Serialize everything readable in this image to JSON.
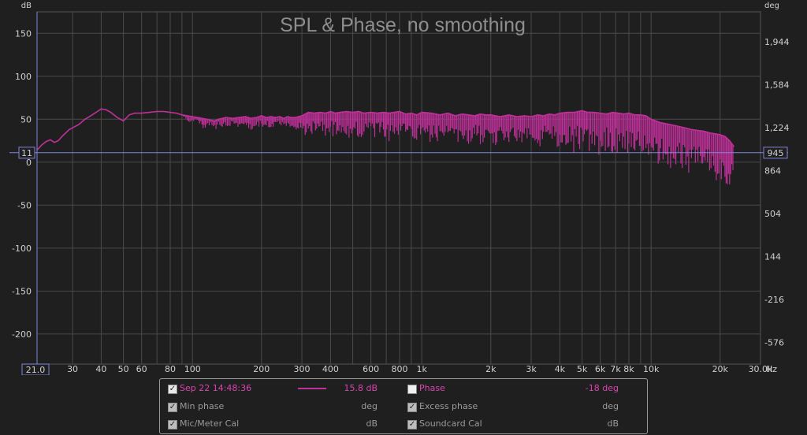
{
  "chart_data": {
    "type": "line",
    "title": "SPL & Phase, no smoothing",
    "y_left_unit": "dB",
    "y_right_unit": "deg",
    "x_unit": "Hz",
    "x_scale": "log",
    "xlim": [
      21,
      30000
    ],
    "ylim_left": [
      -235,
      175
    ],
    "ylim_right": [
      -756,
      2196
    ],
    "y_left_ticks": [
      150,
      100,
      50,
      0,
      -50,
      -100,
      -150,
      -200
    ],
    "y_right_ticks": [
      1944,
      1584,
      1224,
      864,
      504,
      144,
      -216,
      -576
    ],
    "y_right_tick_labels": [
      "1,944",
      "1,584",
      "1,224",
      "864",
      "504",
      "144",
      "-216",
      "-576"
    ],
    "x_tick_values": [
      30,
      40,
      50,
      60,
      80,
      100,
      200,
      300,
      400,
      600,
      800,
      1000,
      2000,
      3000,
      4000,
      5000,
      6000,
      7000,
      8000,
      10000,
      20000,
      30000
    ],
    "x_tick_labels": [
      "30",
      "40",
      "50",
      "60",
      "80",
      "100",
      "200",
      "300",
      "400",
      "600",
      "800",
      "1k",
      "2k",
      "3k",
      "4k",
      "5k",
      "6k",
      "7k",
      "8k",
      "10k",
      "20k",
      "30.0k"
    ],
    "x_minor_grid": [
      70,
      90,
      500,
      700,
      900,
      9000
    ],
    "grid": true,
    "cursor": {
      "x_label": "21.0",
      "y_left_label": "11",
      "y_right_label": "945",
      "y_value": 11
    },
    "colors": {
      "spl": "#c0309a",
      "cursor": "#7f86dc",
      "grid": "#4a4a4a",
      "title": "#8e8e8e",
      "background": "#1f1f1f"
    },
    "series": [
      {
        "name": "Sep 22 14:48:36",
        "x": [
          21,
          22,
          23,
          24,
          25,
          26,
          27,
          28,
          29,
          30,
          32,
          34,
          36,
          38,
          40,
          42,
          44,
          47,
          50,
          53,
          56,
          60,
          65,
          70,
          75,
          80,
          85,
          90,
          95,
          100,
          105,
          110,
          115,
          120,
          125,
          130,
          140,
          150,
          160,
          170,
          180,
          190,
          200,
          210,
          220,
          230,
          240,
          250,
          260,
          270,
          280,
          290,
          300,
          310,
          320,
          340,
          360,
          380,
          400,
          420,
          440,
          470,
          500,
          530,
          560,
          600,
          640,
          680,
          720,
          760,
          800,
          850,
          900,
          950,
          1000,
          1100,
          1200,
          1300,
          1400,
          1500,
          1600,
          1700,
          1800,
          1900,
          2000,
          2200,
          2400,
          2600,
          2800,
          3000,
          3200,
          3400,
          3600,
          3800,
          4000,
          4300,
          4600,
          5000,
          5300,
          5600,
          6000,
          6400,
          6800,
          7200,
          7600,
          8000,
          8500,
          9000,
          9500,
          10000,
          11000,
          12000,
          13000,
          14000,
          15000,
          16000,
          17000,
          18000,
          19000,
          20000,
          21000,
          22000,
          23000
        ],
        "y_top": [
          14,
          20,
          24,
          26,
          23,
          25,
          30,
          34,
          38,
          40,
          44,
          50,
          54,
          58,
          62,
          61,
          58,
          52,
          48,
          55,
          57,
          57,
          58,
          59,
          59,
          58,
          57,
          55,
          54,
          53,
          52,
          51,
          50,
          49,
          48,
          50,
          52,
          51,
          52,
          53,
          51,
          52,
          54,
          52,
          53,
          52,
          53,
          51,
          53,
          52,
          52,
          53,
          54,
          56,
          58,
          57,
          58,
          57,
          59,
          57,
          58,
          59,
          58,
          59,
          57,
          58,
          57,
          58,
          57,
          58,
          59,
          56,
          57,
          55,
          58,
          57,
          55,
          57,
          54,
          56,
          55,
          54,
          56,
          55,
          55,
          53,
          55,
          53,
          54,
          53,
          55,
          54,
          56,
          55,
          57,
          58,
          58,
          60,
          58,
          58,
          57,
          56,
          58,
          57,
          56,
          57,
          55,
          55,
          54,
          50,
          46,
          44,
          42,
          40,
          38,
          37,
          36,
          34,
          33,
          32,
          30,
          25,
          18
        ],
        "y_bottom": [
          14,
          20,
          24,
          26,
          23,
          25,
          30,
          34,
          38,
          40,
          44,
          50,
          54,
          58,
          62,
          61,
          58,
          52,
          48,
          55,
          57,
          57,
          58,
          59,
          59,
          58,
          57,
          55,
          47,
          46,
          48,
          40,
          38,
          45,
          36,
          44,
          37,
          45,
          38,
          44,
          36,
          42,
          40,
          42,
          38,
          44,
          36,
          43,
          35,
          42,
          36,
          38,
          34,
          30,
          36,
          30,
          35,
          25,
          30,
          28,
          33,
          26,
          30,
          24,
          32,
          28,
          27,
          30,
          24,
          29,
          25,
          26,
          28,
          24,
          27,
          22,
          25,
          24,
          22,
          24,
          21,
          26,
          20,
          24,
          16,
          22,
          18,
          24,
          19,
          21,
          15,
          22,
          16,
          18,
          10,
          15,
          9,
          16,
          11,
          14,
          5,
          13,
          8,
          12,
          6,
          10,
          5,
          10,
          2,
          0,
          -5,
          -8,
          -12,
          -10,
          -14,
          -16,
          -12,
          -18,
          -22,
          -20,
          -25,
          -28,
          -30
        ]
      }
    ]
  },
  "legend": {
    "rows": [
      {
        "left": {
          "label": "Sep 22 14:48:36",
          "value": "15.8 dB",
          "checked": true
        },
        "right": {
          "label": "Phase",
          "value": "-18 deg",
          "checked": false
        }
      },
      {
        "left": {
          "label": "Min phase",
          "value": "deg",
          "checked": true
        },
        "right": {
          "label": "Excess phase",
          "value": "deg",
          "checked": true
        }
      },
      {
        "left": {
          "label": "Mic/Meter Cal",
          "value": "dB",
          "checked": true
        },
        "right": {
          "label": "Soundcard Cal",
          "value": "dB",
          "checked": true
        }
      }
    ]
  }
}
